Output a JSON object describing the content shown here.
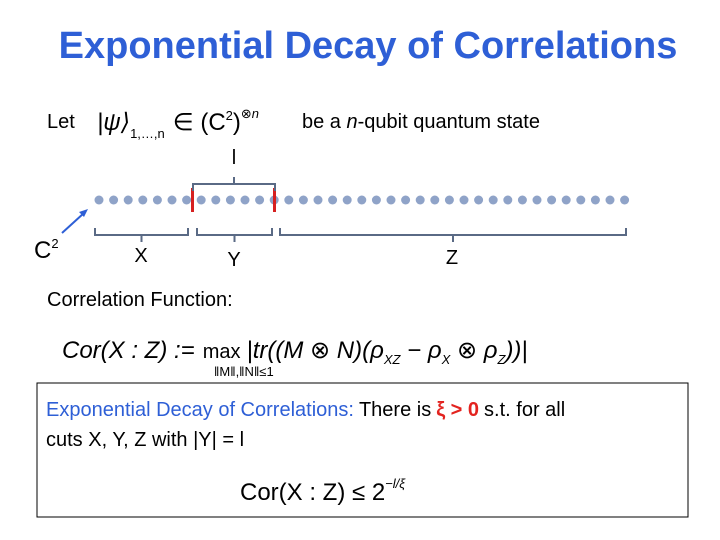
{
  "title": "Exponential Decay of Correlations",
  "state": {
    "let": "Let",
    "ket": "|ψ⟩",
    "ket_sub": "1,…,n",
    "space": "∈ (C",
    "space_sup": "2",
    "space_close": ")",
    "tensor_sup": "⊗n",
    "before": "be a ",
    "n": "n",
    "after": "-qubit quantum state"
  },
  "chain": {
    "l": "l",
    "c": "C",
    "c_sup": "2",
    "x": "X",
    "y": "Y",
    "z": "Z"
  },
  "correlation": {
    "label": "Correlation Function:",
    "lhs": "Cor(X : Z) :=",
    "max": "max",
    "max_sub": "‖M‖,‖N‖≤1",
    "body": "|tr((M ⊗ N)(ρ",
    "sub_xz": "XZ",
    "minus": " − ρ",
    "sub_x": "X",
    "tensor": " ⊗ ρ",
    "sub_z": "Z",
    "close": "))|"
  },
  "theorem": {
    "name": "Exponential Decay of Correlations:",
    "there_is": "There is",
    "xi": "ξ > 0",
    "for_all": "s.t. for all",
    "cuts": "cuts X, Y, Z with |Y| = l",
    "bound_lhs": "Cor(X : Z) ≤ 2",
    "bound_exp": "−l/ξ"
  }
}
